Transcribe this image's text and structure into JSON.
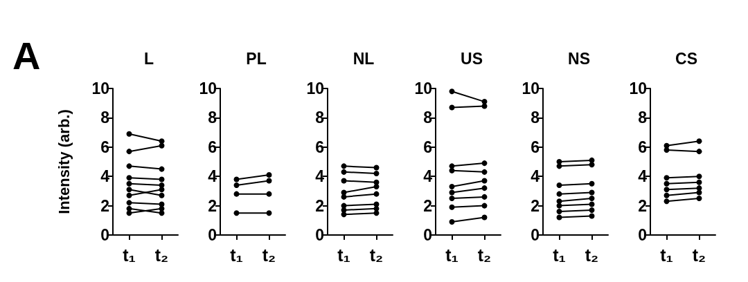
{
  "chart_data": [
    {
      "type": "line",
      "title": "L",
      "ylabel": "Intensity (arb.)",
      "annotations": [
        "A"
      ],
      "categories": [
        "t₁",
        "t₂"
      ],
      "color": "#000000",
      "marker": "circle",
      "ylim": [
        0,
        10
      ],
      "yticks": [
        0,
        2,
        4,
        6,
        8,
        10
      ],
      "series": [
        {
          "values": [
            6.9,
            6.4
          ]
        },
        {
          "values": [
            5.7,
            6.1
          ]
        },
        {
          "values": [
            4.7,
            4.5
          ]
        },
        {
          "values": [
            3.9,
            3.8
          ]
        },
        {
          "values": [
            3.5,
            3.4
          ]
        },
        {
          "values": [
            3.1,
            2.7
          ]
        },
        {
          "values": [
            2.7,
            3.1
          ]
        },
        {
          "values": [
            2.2,
            2.1
          ]
        },
        {
          "values": [
            1.8,
            1.5
          ]
        },
        {
          "values": [
            1.5,
            1.8
          ]
        }
      ]
    },
    {
      "type": "line",
      "title": "PL",
      "categories": [
        "t₁",
        "t₂"
      ],
      "color": "#000000",
      "marker": "circle",
      "ylim": [
        0,
        10
      ],
      "yticks": [
        0,
        2,
        4,
        6,
        8,
        10
      ],
      "series": [
        {
          "values": [
            3.8,
            4.1
          ]
        },
        {
          "values": [
            3.4,
            3.7
          ]
        },
        {
          "values": [
            2.8,
            2.8
          ]
        },
        {
          "values": [
            1.5,
            1.5
          ]
        }
      ]
    },
    {
      "type": "line",
      "title": "NL",
      "categories": [
        "t₁",
        "t₂"
      ],
      "color": "#000000",
      "marker": "circle",
      "ylim": [
        0,
        10
      ],
      "yticks": [
        0,
        2,
        4,
        6,
        8,
        10
      ],
      "series": [
        {
          "values": [
            4.7,
            4.6
          ]
        },
        {
          "values": [
            4.3,
            4.2
          ]
        },
        {
          "values": [
            3.7,
            3.6
          ]
        },
        {
          "values": [
            2.9,
            3.3
          ]
        },
        {
          "values": [
            2.6,
            2.8
          ]
        },
        {
          "values": [
            2.0,
            2.1
          ]
        },
        {
          "values": [
            1.7,
            1.8
          ]
        },
        {
          "values": [
            1.4,
            1.5
          ]
        }
      ]
    },
    {
      "type": "line",
      "title": "US",
      "categories": [
        "t₁",
        "t₂"
      ],
      "color": "#000000",
      "marker": "circle",
      "ylim": [
        0,
        10
      ],
      "yticks": [
        0,
        2,
        4,
        6,
        8,
        10
      ],
      "series": [
        {
          "values": [
            9.8,
            9.1
          ]
        },
        {
          "values": [
            8.7,
            8.8
          ]
        },
        {
          "values": [
            4.7,
            4.9
          ]
        },
        {
          "values": [
            4.4,
            4.3
          ]
        },
        {
          "values": [
            3.3,
            3.7
          ]
        },
        {
          "values": [
            2.9,
            3.2
          ]
        },
        {
          "values": [
            2.5,
            2.6
          ]
        },
        {
          "values": [
            1.9,
            2.0
          ]
        },
        {
          "values": [
            0.9,
            1.2
          ]
        }
      ]
    },
    {
      "type": "line",
      "title": "NS",
      "categories": [
        "t₁",
        "t₂"
      ],
      "color": "#000000",
      "marker": "circle",
      "ylim": [
        0,
        10
      ],
      "yticks": [
        0,
        2,
        4,
        6,
        8,
        10
      ],
      "series": [
        {
          "values": [
            5.0,
            5.1
          ]
        },
        {
          "values": [
            4.7,
            4.8
          ]
        },
        {
          "values": [
            3.4,
            3.5
          ]
        },
        {
          "values": [
            2.8,
            2.9
          ]
        },
        {
          "values": [
            2.3,
            2.5
          ]
        },
        {
          "values": [
            2.0,
            2.1
          ]
        },
        {
          "values": [
            1.6,
            1.7
          ]
        },
        {
          "values": [
            1.2,
            1.3
          ]
        }
      ]
    },
    {
      "type": "line",
      "title": "CS",
      "categories": [
        "t₁",
        "t₂"
      ],
      "color": "#000000",
      "marker": "circle",
      "ylim": [
        0,
        10
      ],
      "yticks": [
        0,
        2,
        4,
        6,
        8,
        10
      ],
      "series": [
        {
          "values": [
            6.1,
            6.4
          ]
        },
        {
          "values": [
            5.8,
            5.7
          ]
        },
        {
          "values": [
            3.9,
            4.0
          ]
        },
        {
          "values": [
            3.5,
            3.6
          ]
        },
        {
          "values": [
            3.1,
            3.2
          ]
        },
        {
          "values": [
            2.7,
            2.9
          ]
        },
        {
          "values": [
            2.3,
            2.5
          ]
        }
      ]
    }
  ]
}
